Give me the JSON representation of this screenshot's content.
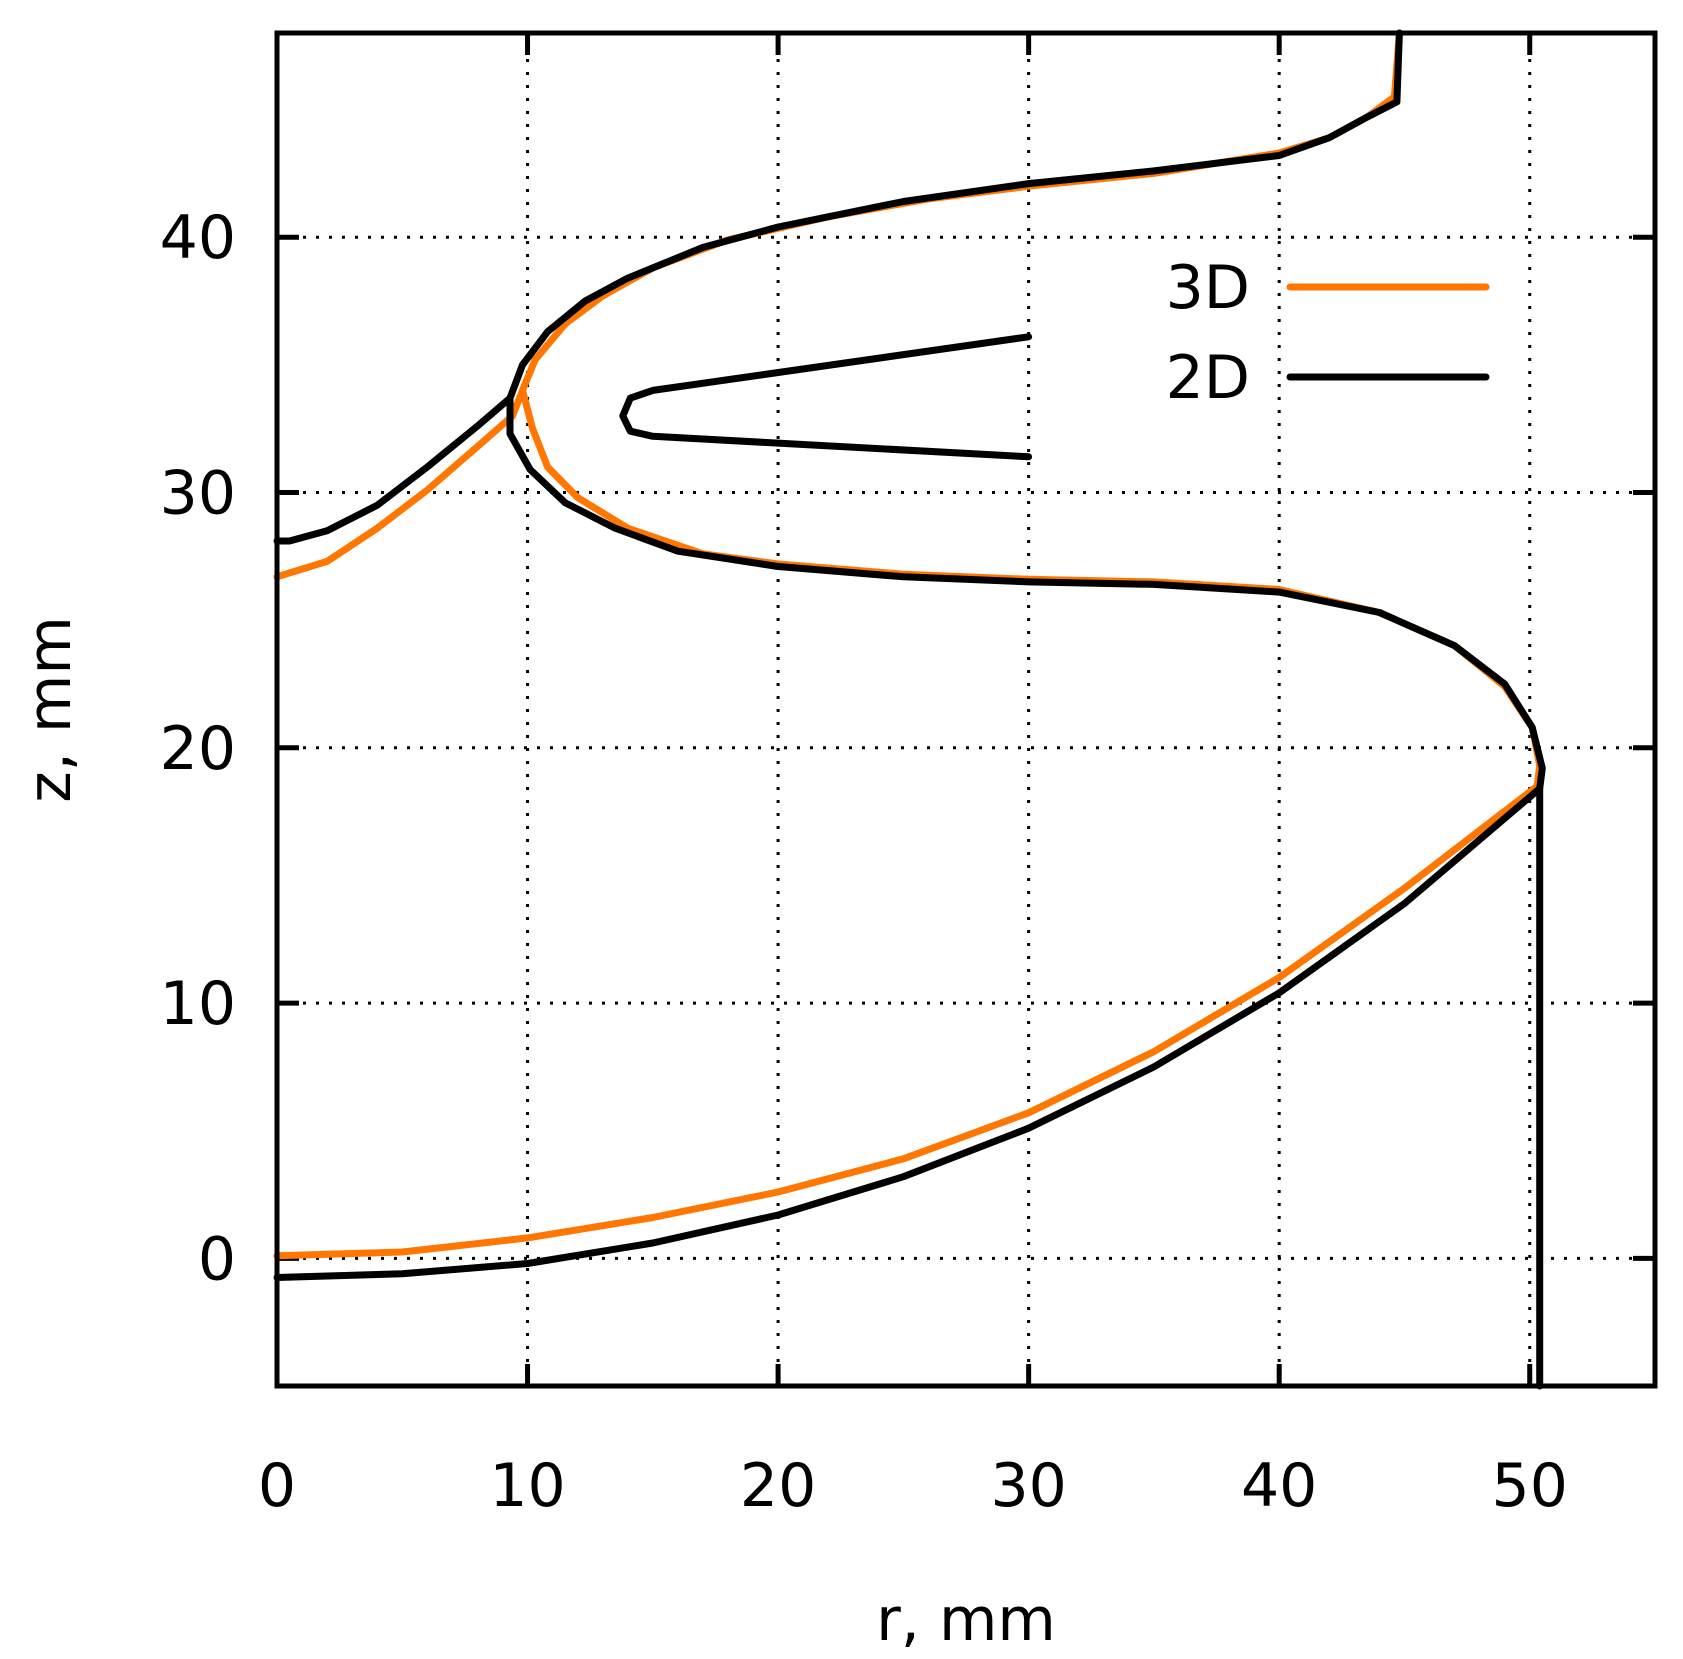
{
  "chart_data": {
    "type": "line",
    "title": "",
    "xlabel": "r, mm",
    "ylabel": "z, mm",
    "xlim": [
      0,
      55
    ],
    "ylim": [
      -5,
      48
    ],
    "x_ticks": [
      0,
      10,
      20,
      30,
      40,
      50
    ],
    "y_ticks": [
      0,
      10,
      20,
      30,
      40
    ],
    "x_tick_labels": [
      "0",
      "10",
      "20",
      "30",
      "40",
      "50"
    ],
    "y_tick_labels": [
      "0",
      "10",
      "20",
      "30",
      "40"
    ],
    "grid": true,
    "legend": "top-right",
    "series": [
      {
        "name": "3D",
        "color": "#ff7700",
        "segments": [
          [
            [
              0,
              0.1
            ],
            [
              5,
              0.25
            ],
            [
              10,
              0.8
            ],
            [
              15,
              1.6
            ],
            [
              20,
              2.6
            ],
            [
              25,
              3.9
            ],
            [
              30,
              5.7
            ],
            [
              35,
              8.1
            ],
            [
              40,
              11.0
            ],
            [
              45,
              14.5
            ],
            [
              50.3,
              18.5
            ]
          ],
          [
            [
              0,
              26.7
            ],
            [
              2,
              27.3
            ],
            [
              4,
              28.6
            ],
            [
              6,
              30.1
            ],
            [
              8,
              31.8
            ],
            [
              9.4,
              33.0
            ],
            [
              9.8,
              34.0
            ],
            [
              10.3,
              35.2
            ],
            [
              11.5,
              36.6
            ],
            [
              13,
              37.7
            ],
            [
              15,
              38.8
            ],
            [
              18,
              39.9
            ],
            [
              22,
              40.8
            ],
            [
              26,
              41.5
            ],
            [
              30,
              42.0
            ],
            [
              35,
              42.5
            ],
            [
              40,
              43.3
            ],
            [
              42,
              43.9
            ],
            [
              43.5,
              44.7
            ],
            [
              44.6,
              45.5
            ],
            [
              44.8,
              48
            ]
          ],
          [
            [
              9.8,
              34.0
            ],
            [
              10.2,
              32.5
            ],
            [
              10.8,
              31.0
            ],
            [
              12,
              29.8
            ],
            [
              14,
              28.6
            ],
            [
              17,
              27.6
            ],
            [
              20,
              27.2
            ],
            [
              25,
              26.8
            ],
            [
              30,
              26.6
            ],
            [
              35,
              26.5
            ],
            [
              40,
              26.2
            ],
            [
              44,
              25.3
            ],
            [
              47,
              24.0
            ],
            [
              49,
              22.4
            ],
            [
              50.1,
              20.8
            ],
            [
              50.4,
              19.3
            ],
            [
              50.3,
              18.5
            ]
          ]
        ]
      },
      {
        "name": "2D",
        "color": "#000000",
        "segments": [
          [
            [
              0,
              -0.75
            ],
            [
              5,
              -0.6
            ],
            [
              10,
              -0.2
            ],
            [
              15,
              0.6
            ],
            [
              20,
              1.7
            ],
            [
              25,
              3.2
            ],
            [
              30,
              5.1
            ],
            [
              35,
              7.5
            ],
            [
              40,
              10.4
            ],
            [
              45,
              13.9
            ],
            [
              50.4,
              18.4
            ]
          ],
          [
            [
              50.4,
              18.4
            ],
            [
              50.4,
              -5
            ]
          ],
          [
            [
              0,
              28.1
            ],
            [
              0.5,
              28.1
            ],
            [
              2,
              28.5
            ],
            [
              4,
              29.5
            ],
            [
              6,
              31.0
            ],
            [
              8,
              32.6
            ],
            [
              9.3,
              33.7
            ],
            [
              9.8,
              35.0
            ],
            [
              10.8,
              36.3
            ],
            [
              12.3,
              37.5
            ],
            [
              14,
              38.4
            ],
            [
              17,
              39.6
            ],
            [
              20,
              40.4
            ],
            [
              25,
              41.4
            ],
            [
              30,
              42.1
            ],
            [
              35,
              42.6
            ],
            [
              40,
              43.2
            ],
            [
              42,
              43.9
            ],
            [
              43.5,
              44.7
            ],
            [
              44.7,
              45.3
            ],
            [
              44.8,
              48
            ]
          ],
          [
            [
              9.3,
              33.7
            ],
            [
              9.3,
              32.3
            ],
            [
              10.1,
              30.9
            ],
            [
              11.5,
              29.6
            ],
            [
              13.5,
              28.6
            ],
            [
              16,
              27.7
            ],
            [
              20,
              27.1
            ],
            [
              25,
              26.7
            ],
            [
              30,
              26.5
            ],
            [
              35,
              26.4
            ],
            [
              40,
              26.1
            ],
            [
              44,
              25.3
            ],
            [
              47,
              24.0
            ],
            [
              49,
              22.5
            ],
            [
              50.1,
              20.8
            ],
            [
              50.5,
              19.2
            ],
            [
              50.4,
              18.4
            ]
          ],
          [
            [
              30,
              36.1
            ],
            [
              15,
              34.0
            ],
            [
              14.1,
              33.7
            ],
            [
              13.8,
              33.0
            ],
            [
              14.1,
              32.4
            ],
            [
              15,
              32.2
            ],
            [
              30,
              31.4
            ]
          ]
        ]
      }
    ]
  }
}
